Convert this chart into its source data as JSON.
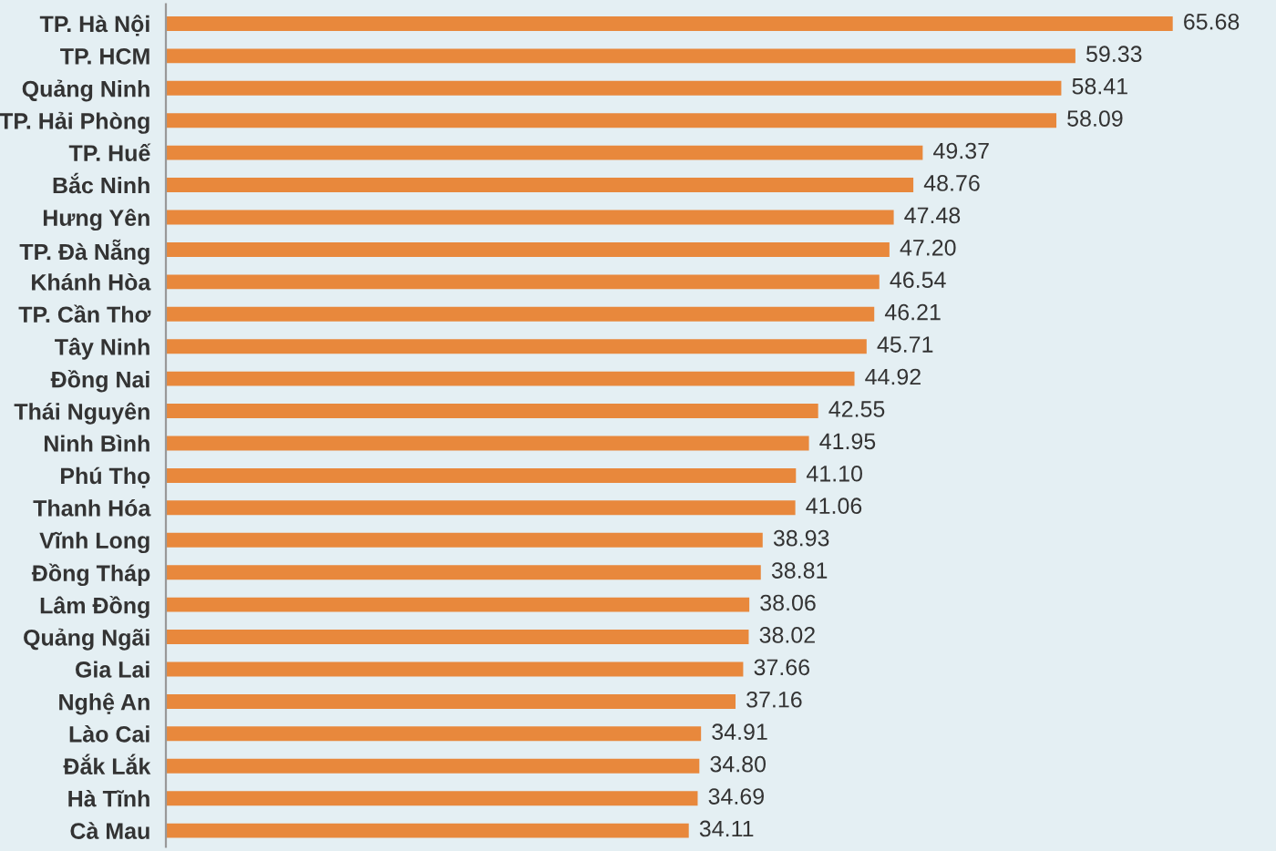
{
  "chart_data": {
    "type": "bar",
    "orientation": "horizontal",
    "color": "#e8883c",
    "categories": [
      "TP. Hà Nội",
      "TP. HCM",
      "Quảng Ninh",
      "TP. Hải Phòng",
      "TP. Huế",
      "Bắc Ninh",
      "Hưng Yên",
      "TP. Đà Nẵng",
      "Khánh Hòa",
      "TP. Cần Thơ",
      "Tây Ninh",
      "Đồng Nai",
      "Thái Nguyên",
      "Ninh Bình",
      "Phú Thọ",
      "Thanh Hóa",
      "Vĩnh Long",
      "Đồng Tháp",
      "Lâm Đồng",
      "Quảng Ngãi",
      "Gia Lai",
      "Nghệ An",
      "Lào Cai",
      "Đắk Lắk",
      "Hà Tĩnh",
      "Cà Mau"
    ],
    "values": [
      65.68,
      59.33,
      58.41,
      58.09,
      49.37,
      48.76,
      47.48,
      47.2,
      46.54,
      46.21,
      45.71,
      44.92,
      42.55,
      41.95,
      41.1,
      41.06,
      38.93,
      38.81,
      38.06,
      38.02,
      37.66,
      37.16,
      34.91,
      34.8,
      34.69,
      34.11
    ],
    "value_labels": [
      "65.68",
      "59.33",
      "58.41",
      "58.09",
      "49.37",
      "48.76",
      "47.48",
      "47.20",
      "46.54",
      "46.21",
      "45.71",
      "44.92",
      "42.55",
      "41.95",
      "41.10",
      "41.06",
      "38.93",
      "38.81",
      "38.06",
      "38.02",
      "37.66",
      "37.16",
      "34.91",
      "34.80",
      "34.69",
      "34.11"
    ],
    "xlim": [
      0,
      72
    ],
    "tick_labels": "y",
    "grid": false,
    "legend": false
  }
}
